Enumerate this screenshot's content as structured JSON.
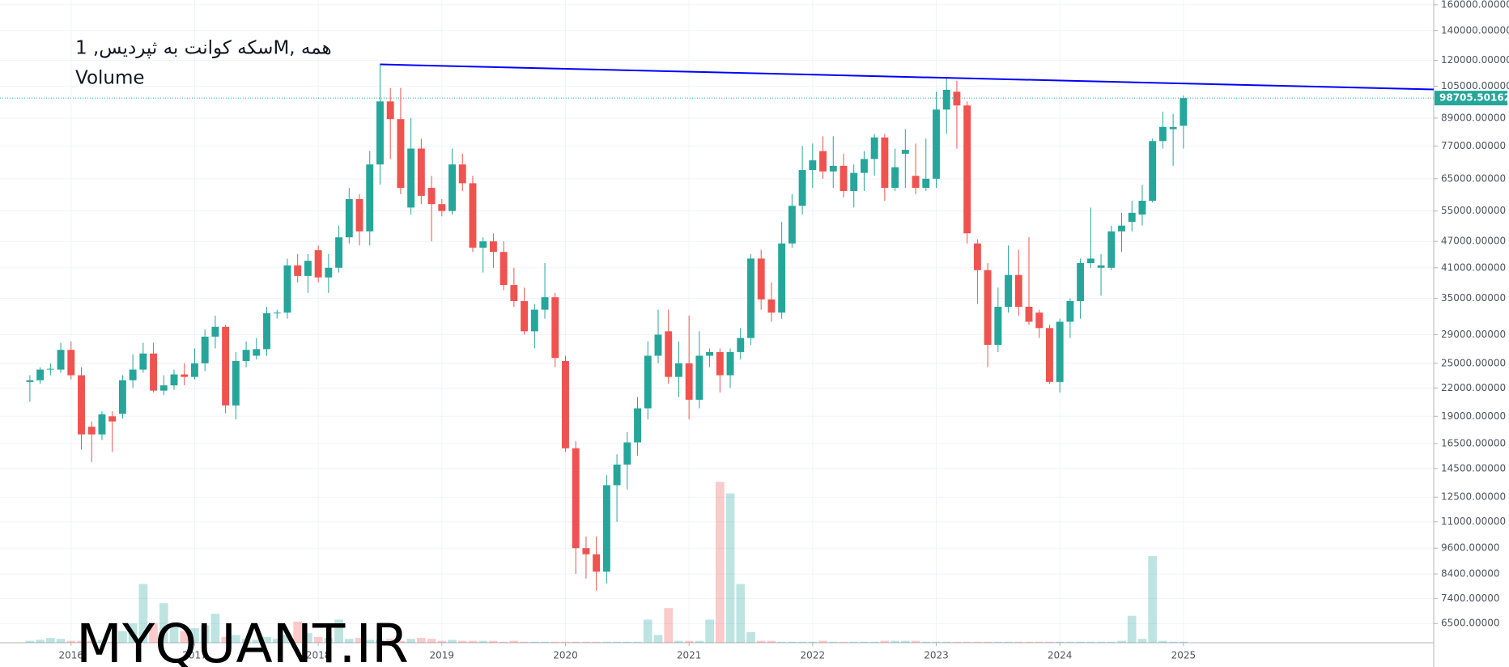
{
  "chart_data": {
    "type": "candlestick",
    "title": "سکه کوانت به ثپردیس, 1M, همه",
    "subtitle": "Volume",
    "watermark": "MYQUANT.IR",
    "log_scale": true,
    "grid": true,
    "up_color": "#26a69a",
    "down_color": "#ef5350",
    "trendline_color": "#0000ff",
    "open": [
      22700,
      22900,
      24200,
      24200,
      26800,
      23500,
      18000,
      17300,
      19000,
      19250,
      22900,
      24200,
      26300,
      21700,
      22300,
      23600,
      23300,
      25000,
      28700,
      30200,
      20100,
      25300,
      26000,
      26900,
      32400,
      32500,
      41500,
      39300,
      44900,
      39000,
      41000,
      48000,
      58500,
      49500,
      70000,
      97000,
      88500,
      56000,
      76000,
      62000,
      57000,
      55000,
      70000,
      63500,
      45500,
      47000,
      44500,
      37500,
      34500,
      29500,
      33000,
      35200,
      25300,
      16100,
      9600,
      9300,
      8500,
      13300,
      14800,
      16600,
      19800,
      26000,
      29500,
      23300,
      25000,
      20700,
      26000,
      26500,
      23500,
      26500,
      28500,
      43000,
      34800,
      32500,
      46500,
      56500,
      68000,
      75000,
      67500,
      69500,
      61000,
      67000,
      72000,
      80500,
      62000,
      74000,
      66000,
      62000,
      65000,
      93000,
      102000,
      95000,
      46500,
      40500,
      27500,
      33500,
      39500,
      33500,
      32500,
      30000,
      22700,
      31000,
      34500,
      42000,
      41000,
      41000,
      49500,
      52000,
      54000,
      58000,
      79000,
      84000,
      85500
    ],
    "high": [
      23500,
      24500,
      25000,
      27800,
      28000,
      24500,
      18500,
      19500,
      19500,
      23500,
      26200,
      27800,
      27800,
      23500,
      24200,
      25000,
      27000,
      29800,
      32000,
      30500,
      26500,
      28000,
      28500,
      33500,
      33000,
      43000,
      44000,
      44000,
      46000,
      44000,
      51000,
      62000,
      60000,
      75000,
      117500,
      104000,
      104000,
      89000,
      80000,
      66000,
      58500,
      76000,
      74000,
      66000,
      48000,
      49000,
      47000,
      41000,
      37000,
      34000,
      42000,
      36000,
      26000,
      16700,
      10200,
      10200,
      14000,
      15600,
      17500,
      21000,
      28000,
      33000,
      33000,
      28000,
      32000,
      29500,
      27000,
      27000,
      27000,
      30000,
      44000,
      45000,
      38000,
      52000,
      60000,
      77000,
      78000,
      81000,
      81000,
      74000,
      70000,
      75000,
      82000,
      82000,
      76000,
      84000,
      78000,
      80000,
      102000,
      110000,
      108000,
      97000,
      47500,
      42000,
      37000,
      46000,
      45000,
      48000,
      33000,
      30500,
      31500,
      35000,
      43000,
      56000,
      44000,
      51000,
      54500,
      58000,
      63000,
      80000,
      92000,
      91000,
      100000
    ],
    "low": [
      20500,
      22500,
      23500,
      23800,
      23000,
      16000,
      15000,
      16800,
      15800,
      18800,
      22000,
      23800,
      21500,
      21200,
      21800,
      22300,
      23000,
      24000,
      27000,
      19300,
      18700,
      24500,
      25500,
      26000,
      31500,
      31500,
      38000,
      36000,
      38000,
      36000,
      40000,
      46500,
      46000,
      46000,
      63000,
      72000,
      60000,
      54000,
      57000,
      47000,
      53500,
      54000,
      61000,
      44500,
      40000,
      41000,
      36500,
      33500,
      29000,
      27000,
      31500,
      24500,
      15800,
      8400,
      8200,
      7700,
      8000,
      11000,
      13000,
      15500,
      18700,
      25000,
      22500,
      21000,
      18700,
      19800,
      24500,
      21500,
      22000,
      25500,
      27500,
      33000,
      31000,
      31500,
      45500,
      54000,
      62000,
      65000,
      62000,
      59000,
      56000,
      61000,
      66000,
      58000,
      61000,
      62000,
      60000,
      61000,
      62000,
      82000,
      76000,
      46500,
      34000,
      24500,
      26500,
      32500,
      32000,
      30500,
      28500,
      22500,
      21500,
      28500,
      31500,
      41000,
      35500,
      40500,
      44500,
      49500,
      51000,
      57500,
      76000,
      69500,
      76000
    ],
    "close": [
      22900,
      24200,
      24300,
      26800,
      23500,
      17300,
      17300,
      19200,
      18500,
      22900,
      24200,
      26300,
      21700,
      22300,
      23600,
      23300,
      25000,
      28700,
      30200,
      20100,
      25300,
      26800,
      26900,
      32400,
      32500,
      41500,
      39300,
      42500,
      39000,
      41000,
      48000,
      58500,
      49500,
      70000,
      97000,
      88500,
      62000,
      76000,
      59500,
      57000,
      55000,
      70000,
      63500,
      45500,
      47000,
      44500,
      37500,
      34500,
      29500,
      33000,
      35200,
      25700,
      16100,
      9600,
      9300,
      8500,
      13300,
      14800,
      16600,
      19800,
      26000,
      29000,
      23300,
      25000,
      20700,
      26000,
      26500,
      23500,
      26500,
      28500,
      43000,
      34800,
      32500,
      46500,
      56500,
      68000,
      71500,
      67500,
      69500,
      61000,
      67000,
      72000,
      80500,
      62000,
      69000,
      75500,
      62000,
      65000,
      93000,
      103000,
      95000,
      49000,
      40500,
      27500,
      33500,
      39500,
      33500,
      31000,
      30000,
      22700,
      31000,
      34500,
      42000,
      43000,
      41500,
      49500,
      51000,
      54500,
      58000,
      79000,
      85000,
      85000,
      98705.50162
    ],
    "volume": [
      2,
      3,
      5,
      4,
      2,
      2,
      2,
      3,
      1,
      12,
      20,
      61,
      20,
      41,
      20,
      12,
      15,
      18,
      30,
      6,
      8,
      4,
      3,
      6,
      4,
      8,
      22,
      10,
      6,
      5,
      24,
      4,
      5,
      3,
      3,
      4,
      2,
      4,
      5,
      4,
      2,
      3,
      2,
      2,
      2,
      2,
      1,
      2,
      1,
      1,
      1,
      1,
      1,
      1,
      1,
      1,
      1,
      1,
      1,
      1,
      24,
      8,
      36,
      2,
      2,
      2,
      24,
      167,
      155,
      61,
      11,
      2,
      2,
      1,
      1,
      1,
      1,
      2,
      1,
      1,
      1,
      1,
      1,
      2,
      2,
      2,
      2,
      1,
      1,
      1,
      1,
      1,
      1,
      1,
      1,
      1,
      1,
      1,
      1,
      1,
      1,
      1,
      1,
      1,
      1,
      1,
      2,
      28,
      4,
      90,
      2,
      1,
      1
    ],
    "trendline": [
      {
        "x": 34,
        "y": 117500
      },
      {
        "x": 89,
        "y": 109600
      }
    ],
    "xlim": [
      -2.9,
      136.3
    ],
    "xticks": [
      {
        "value": 4,
        "label": "2016"
      },
      {
        "value": 16,
        "label": "2017"
      },
      {
        "value": 28,
        "label": "2018"
      },
      {
        "value": 40,
        "label": "2019"
      },
      {
        "value": 52,
        "label": "2020"
      },
      {
        "value": 64,
        "label": "2021"
      },
      {
        "value": 76,
        "label": "2022"
      },
      {
        "value": 88,
        "label": "2023"
      },
      {
        "value": 100,
        "label": "2024"
      },
      {
        "value": 112,
        "label": "2025"
      }
    ],
    "ylim": [
      5884,
      164000
    ],
    "yticks": [
      {
        "value": 160000,
        "label": "160000.00000"
      },
      {
        "value": 140000,
        "label": "140000.00000"
      },
      {
        "value": 120000,
        "label": "120000.00000"
      },
      {
        "value": 105000,
        "label": "105000.00000"
      },
      {
        "value": 89000,
        "label": "89000.00000"
      },
      {
        "value": 77000,
        "label": "77000.00000"
      },
      {
        "value": 65000,
        "label": "65000.00000"
      },
      {
        "value": 55000,
        "label": "55000.00000"
      },
      {
        "value": 47000,
        "label": "47000.00000"
      },
      {
        "value": 41000,
        "label": "41000.00000"
      },
      {
        "value": 35000,
        "label": "35000.00000"
      },
      {
        "value": 29000,
        "label": "29000.00000"
      },
      {
        "value": 25000,
        "label": "25000.00000"
      },
      {
        "value": 22000,
        "label": "22000.00000"
      },
      {
        "value": 19000,
        "label": "19000.00000"
      },
      {
        "value": 16500,
        "label": "16500.00000"
      },
      {
        "value": 14500,
        "label": "14500.00000"
      },
      {
        "value": 12500,
        "label": "12500.00000"
      },
      {
        "value": 11000,
        "label": "11000.00000"
      },
      {
        "value": 9600,
        "label": "9600.00000"
      },
      {
        "value": 8400,
        "label": "8400.00000"
      },
      {
        "value": 7400,
        "label": "7400.00000"
      },
      {
        "value": 6500,
        "label": "6500.00000"
      }
    ]
  }
}
